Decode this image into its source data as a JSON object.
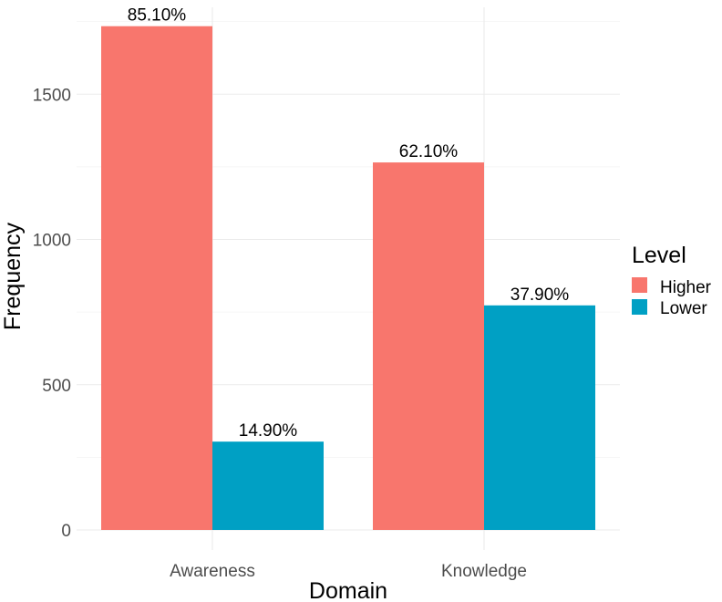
{
  "chart_data": {
    "type": "bar",
    "categories": [
      "Awareness",
      "Knowledge"
    ],
    "series": [
      {
        "name": "Higher",
        "values": [
          1734,
          1265
        ],
        "labels": [
          "85.10%",
          "62.10%"
        ],
        "color": "#f8766d"
      },
      {
        "name": "Lower",
        "values": [
          304,
          773
        ],
        "labels": [
          "14.90%",
          "37.90%"
        ],
        "color": "#00a0c4"
      }
    ],
    "xlabel": "Domain",
    "ylabel": "Frequency",
    "ylim": [
      0,
      1800
    ],
    "yticks": [
      0,
      500,
      1000,
      1500
    ],
    "legend": {
      "title": "Level",
      "items": [
        "Higher",
        "Lower"
      ],
      "position": "right"
    },
    "grid": true
  }
}
